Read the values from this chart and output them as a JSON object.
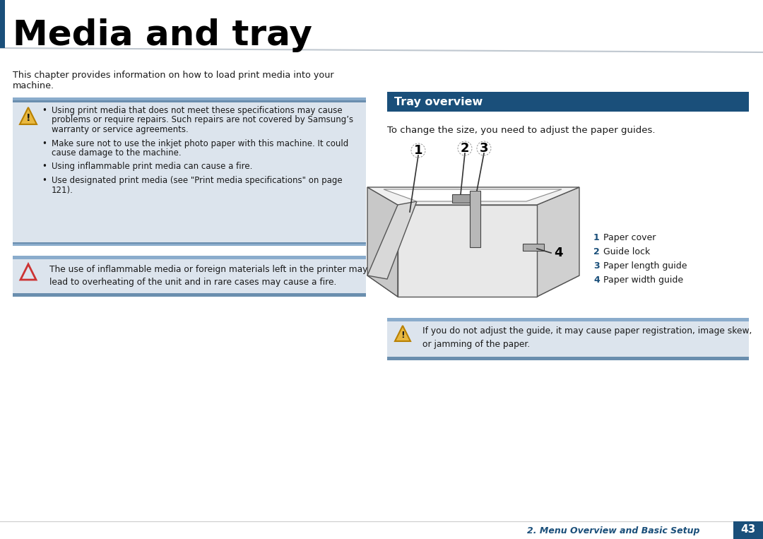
{
  "title": "Media and tray",
  "title_fontsize": 36,
  "title_color": "#000000",
  "title_bar_color": "#1a4f7a",
  "bg_color": "#ffffff",
  "section_header": "Tray overview",
  "section_header_bg": "#1a4f7a",
  "section_header_color": "#ffffff",
  "tray_overview_text": "To change the size, you need to adjust the paper guides.",
  "chapter_text_line1": "This chapter provides information on how to load print media into your",
  "chapter_text_line2": "machine.",
  "warning_bg": "#dce4ed",
  "band_color_top": "#7a9ab8",
  "band_color_bot": "#4a7090",
  "bullet_texts": [
    "Using print media that does not meet these specifications may cause\nproblems or require repairs. Such repairs are not covered by Samsung’s\nwarranty or service agreements.",
    "Make sure not to use the inkjet photo paper with this machine. It could\ncause damage to the machine.",
    "Using inflammable print media can cause a fire.",
    "Use designated print media (see \"Print media specifications\" on page\n121)."
  ],
  "caution1_text": "The use of inflammable media or foreign materials left in the printer may\nlead to overheating of the unit and in rare cases may cause a fire.",
  "warning2_text": "If you do not adjust the guide, it may cause paper registration, image skew,\nor jamming of the paper.",
  "legend_items": [
    {
      "num": "1",
      "label": "  Paper cover"
    },
    {
      "num": "2",
      "label": "  Guide lock"
    },
    {
      "num": "3",
      "label": "  Paper length guide"
    },
    {
      "num": "4",
      "label": "  Paper width guide"
    }
  ],
  "footer_text": "2. Menu Overview and Basic Setup",
  "page_num": "43",
  "footer_color": "#1a4f7a"
}
